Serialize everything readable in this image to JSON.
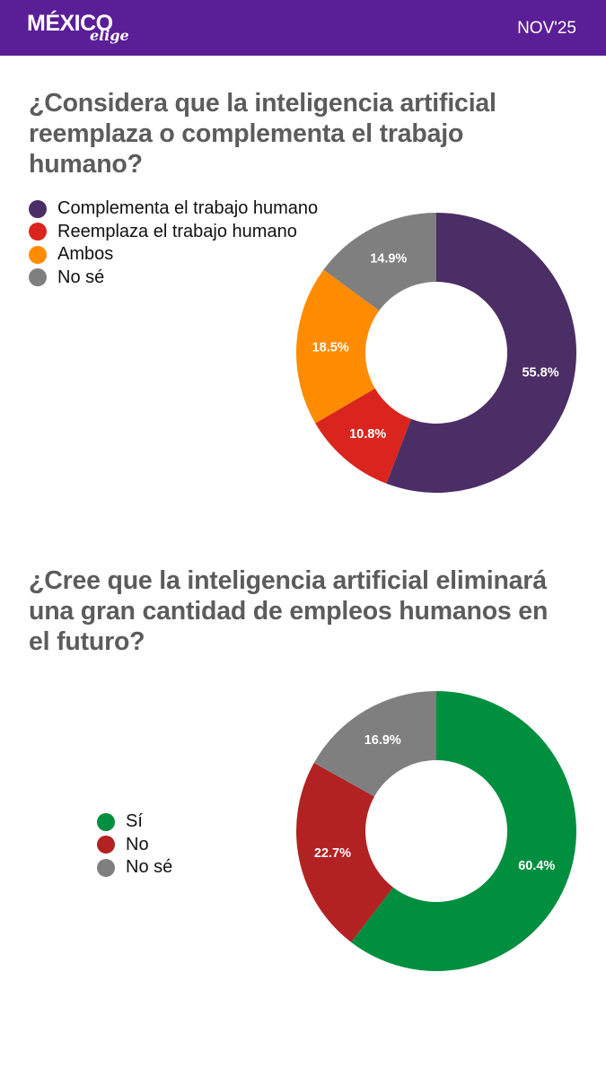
{
  "header": {
    "logo_main": "MÉXICO",
    "logo_sub": "elige",
    "date": "NOV'25",
    "background": "#5a1e96"
  },
  "chart_data": [
    {
      "type": "pie",
      "title": "¿Considera que la inteligencia artificial reemplaza o complementa el trabajo humano?",
      "donut": true,
      "legend_position": "left",
      "categories": [
        "Complementa el trabajo humano",
        "Reemplaza el trabajo humano",
        "Ambos",
        "No sé"
      ],
      "values": [
        55.8,
        10.8,
        18.5,
        14.9
      ],
      "labels": [
        "55.8%",
        "10.8%",
        "18.5%",
        "14.9%"
      ],
      "colors": [
        "#4b2e66",
        "#d9251e",
        "#ff8c00",
        "#7f7f7f"
      ]
    },
    {
      "type": "pie",
      "title": "¿Cree que la inteligencia artificial eliminará una gran cantidad de empleos humanos en el futuro?",
      "donut": true,
      "legend_position": "left",
      "categories": [
        "Sí",
        "No",
        "No sé"
      ],
      "values": [
        60.4,
        22.7,
        16.9
      ],
      "labels": [
        "60.4%",
        "22.7%",
        "16.9%"
      ],
      "colors": [
        "#008f3e",
        "#b22222",
        "#7f7f7f"
      ]
    }
  ]
}
